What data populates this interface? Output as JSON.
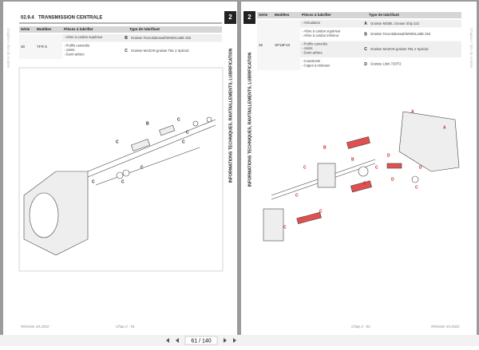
{
  "viewer": {
    "page_indicator": "61 / 140"
  },
  "left_page": {
    "side_note": "Chapitre / titre du modèle",
    "section_number": "02.9.4",
    "section_title": "TRANSMISSION CENTRALE",
    "tab": "2",
    "spine_title": "INFORMATIONS TECHNIQUES, RAVITAILLEMENTS, LUBRIFICATION",
    "table": {
      "headers": [
        "Série",
        "Modèles",
        "Pièces à lubrifier",
        "Type de lubrifiant"
      ],
      "rows": [
        {
          "serie": "30",
          "modeles": "TFR 6",
          "items": [
            {
              "parts": [
                "- Arbre à cardan supérieur"
              ],
              "code": "B",
              "lubricant": "Graisse Tecnolubeseal/WHEELUBE 253"
            },
            {
              "parts": [
                "- Profils cannelés",
                "- Joints",
                "- Demi-arbres"
              ],
              "code": "C",
              "lubricant": "Graisse MAZON graisse TBL 2 Spécial"
            }
          ]
        }
      ]
    },
    "diagram_labels": [
      "B",
      "C",
      "C",
      "C",
      "C",
      "C",
      "C",
      "C"
    ],
    "footer": {
      "revision": "Révision 10.2022",
      "page": "Chap 2 : 51"
    }
  },
  "right_page": {
    "side_note": "Chapitre / titre du modèle",
    "tab": "2",
    "spine_title": "INFORMATIONS TECHNIQUES, RAVITAILLEMENTS, LUBRIFICATION",
    "table": {
      "headers": [
        "Série",
        "Modèles",
        "Pièces à lubrifier",
        "Type de lubrifiant"
      ],
      "rows": [
        {
          "serie": "32",
          "modeles": "SP18F10",
          "items": [
            {
              "parts": [
                "- Articulation"
              ],
              "code": "A",
              "lubricant": "Graisse MOBIL Grease Ship 222"
            },
            {
              "parts": [
                "- Arbre à cardan supérieur",
                "- Arbre à cardan inférieur"
              ],
              "code": "B",
              "lubricant": "Graisse Tecnolubeseal/WHEELUBE 253"
            },
            {
              "parts": [
                "- Profils cannelés",
                "- Joints",
                "- Demi-arbres"
              ],
              "code": "C",
              "lubricant": "Graisse MAZON graisse TBL 2 Spécial"
            },
            {
              "parts": [
                "- Coussinets",
                "- Cages à rouleaux"
              ],
              "code": "D",
              "lubricant": "Graisse Litek 720/T2"
            }
          ]
        }
      ]
    },
    "diagram_labels": [
      "A",
      "A",
      "B",
      "B",
      "C",
      "C",
      "C",
      "C",
      "C",
      "D",
      "D",
      "D",
      "C",
      "C"
    ],
    "footer": {
      "revision": "Révision 10.2022",
      "page": "Chap 2 : 52"
    }
  }
}
